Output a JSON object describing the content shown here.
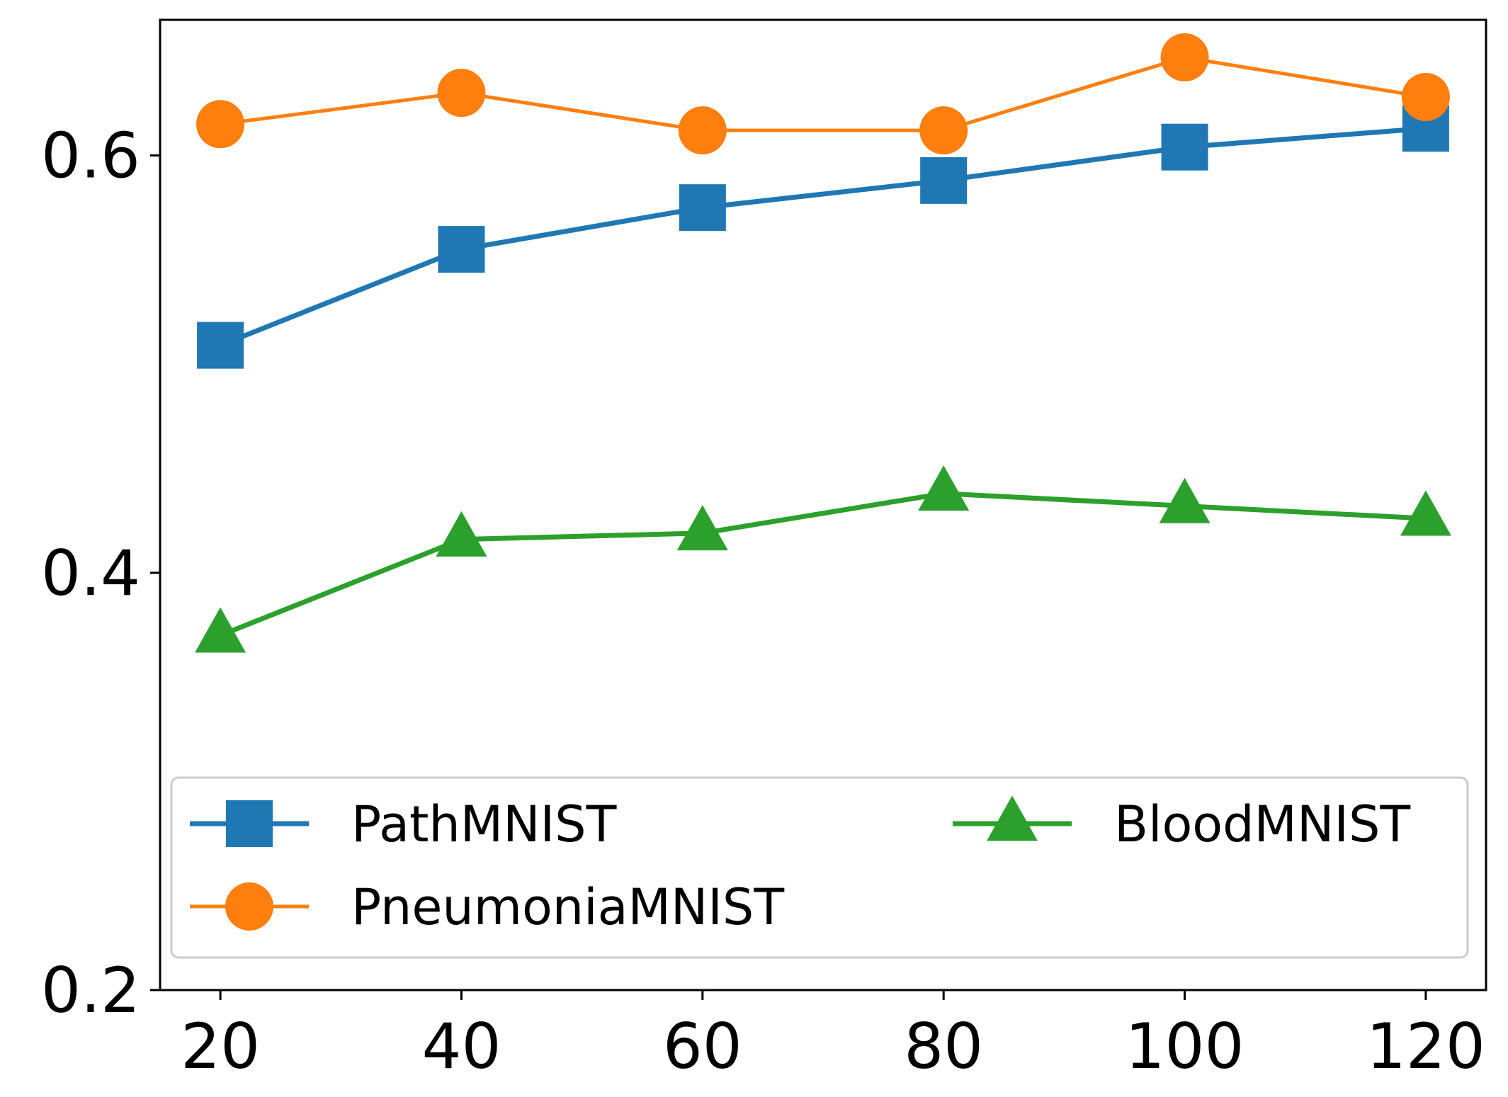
{
  "chart_data": {
    "type": "line",
    "x": [
      20,
      40,
      60,
      80,
      100,
      120
    ],
    "xlim": [
      15,
      125
    ],
    "ylim": [
      0.2,
      0.665
    ],
    "xticks": [
      "20",
      "40",
      "60",
      "80",
      "100",
      "120"
    ],
    "yticks": [
      "0.2",
      "0.4",
      "0.6"
    ],
    "xlabel": "",
    "ylabel": "",
    "title": "",
    "grid": false,
    "legend_position": "lower center",
    "legend_columns": 2,
    "series": [
      {
        "name": "PathMNIST",
        "values": [
          0.509,
          0.555,
          0.575,
          0.588,
          0.604,
          0.613
        ],
        "color": "#1f77b4",
        "marker": "square",
        "line": "thick"
      },
      {
        "name": "PneumoniaMNIST",
        "values": [
          0.615,
          0.63,
          0.612,
          0.612,
          0.647,
          0.628
        ],
        "color": "#ff7f0e",
        "marker": "circle",
        "line": "thin"
      },
      {
        "name": "BloodMNIST",
        "values": [
          0.37,
          0.416,
          0.419,
          0.438,
          0.432,
          0.426
        ],
        "color": "#2ca02c",
        "marker": "triangle",
        "line": "thick"
      }
    ]
  }
}
